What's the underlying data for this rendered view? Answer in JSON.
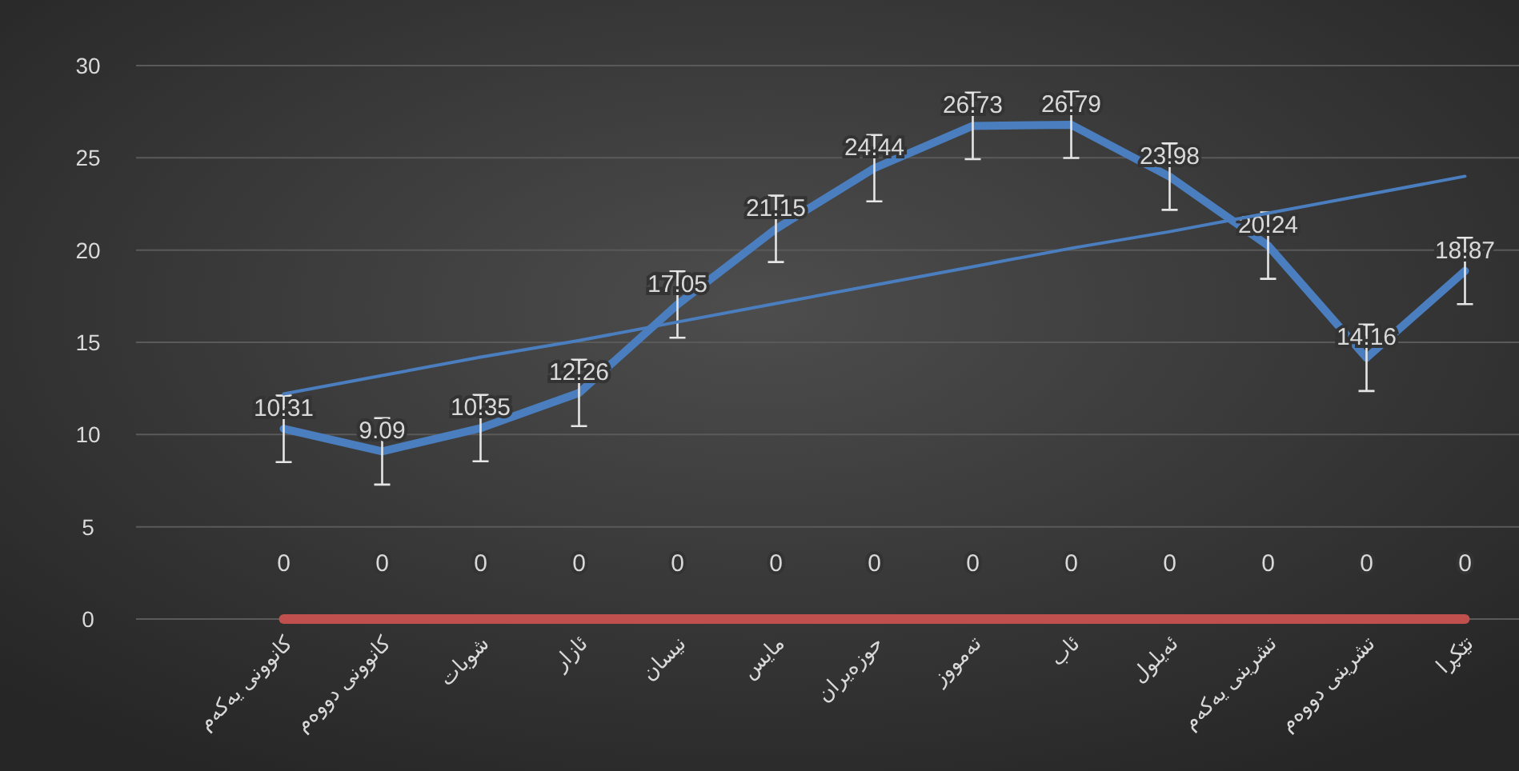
{
  "chart_data": {
    "type": "line",
    "categories": [
      "کانوونی یەکەم",
      "کانوونی دووەم",
      "شوبات",
      "ئازار",
      "نیسان",
      "مایس",
      "حوزەیران",
      "تەمووز",
      "ئاب",
      "ئەیلول",
      "تشرینی یەکەم",
      "تشرینی دووەم",
      "تێکڕا"
    ],
    "series": [
      {
        "color": "#4a7ebf",
        "values": [
          10.31,
          9.09,
          10.35,
          12.26,
          17.05,
          21.15,
          24.44,
          26.73,
          26.79,
          23.98,
          20.24,
          14.16,
          18.87
        ],
        "errors": [
          1.8,
          1.8,
          1.8,
          1.8,
          1.8,
          1.8,
          1.8,
          1.8,
          1.8,
          1.8,
          1.8,
          1.8,
          1.8
        ],
        "value_labels": [
          "10.31",
          "9.09",
          "10.35",
          "12.26",
          "17.05",
          "21.15",
          "24.44",
          "26.73",
          "26.79",
          "23.98",
          "20.24",
          "14.16",
          "18.87"
        ]
      },
      {
        "color": "#c0504d",
        "values": [
          0,
          0,
          0,
          0,
          0,
          0,
          0,
          0,
          0,
          0,
          0,
          0,
          0
        ],
        "value_labels": [
          "0",
          "0",
          "0",
          "0",
          "0",
          "0",
          "0",
          "0",
          "0",
          "0",
          "0",
          "0",
          "0"
        ]
      },
      {
        "type": "line",
        "color": "#4a7ebf",
        "values": [
          12.2,
          13.2,
          14.2,
          15.1,
          16.1,
          17.1,
          18.1,
          19.1,
          20.1,
          21.0,
          22.0,
          23.0,
          24.0
        ]
      }
    ],
    "ylim": [
      0,
      30
    ],
    "yticks": [
      0,
      5,
      10,
      15,
      20,
      25,
      30
    ],
    "grid": "y",
    "marker": "none",
    "line_style": "solid"
  }
}
